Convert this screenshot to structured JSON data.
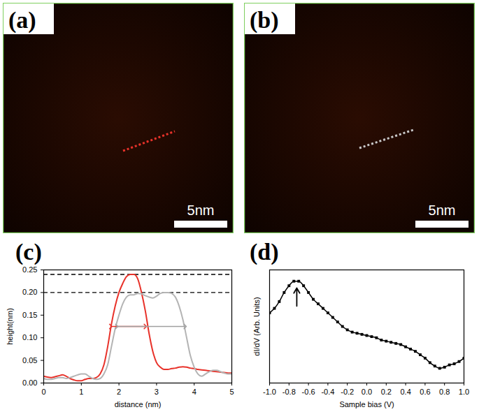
{
  "chart_data": [
    {
      "type": "image",
      "title": "(a)",
      "annotations": [
        "5nm"
      ],
      "color": "#e8322a"
    },
    {
      "type": "image",
      "title": "(b)",
      "annotations": [
        "5nm"
      ],
      "color": "#c8c8c8"
    },
    {
      "type": "line",
      "title": "(c)",
      "xlabel": "distance (nm)",
      "ylabel": "height(nm)",
      "x": [
        0,
        0.1,
        0.2,
        0.3,
        0.4,
        0.5,
        0.6,
        0.7,
        0.8,
        0.9,
        1.0,
        1.1,
        1.2,
        1.3,
        1.4,
        1.5,
        1.6,
        1.7,
        1.8,
        1.9,
        2.0,
        2.1,
        2.2,
        2.3,
        2.4,
        2.5,
        2.6,
        2.7,
        2.8,
        2.9,
        3.0,
        3.1,
        3.2,
        3.3,
        3.4,
        3.5,
        3.6,
        3.7,
        3.8,
        3.9,
        4.0,
        4.1,
        4.2,
        4.3,
        4.4,
        4.5,
        4.6,
        4.7,
        4.8,
        4.9,
        5.0
      ],
      "series": [
        {
          "color": "#e8322a",
          "values": [
            0.015,
            0.013,
            0.012,
            0.014,
            0.016,
            0.018,
            0.015,
            0.01,
            0.007,
            0.005,
            0.005,
            0.008,
            0.01,
            0.01,
            0.012,
            0.02,
            0.04,
            0.08,
            0.13,
            0.17,
            0.2,
            0.22,
            0.235,
            0.24,
            0.24,
            0.23,
            0.2,
            0.16,
            0.11,
            0.07,
            0.045,
            0.035,
            0.03,
            0.03,
            0.032,
            0.033,
            0.035,
            0.036,
            0.035,
            0.033,
            0.032,
            0.03,
            0.029,
            0.028,
            0.027,
            0.026,
            0.025,
            0.024,
            0.023,
            0.022,
            0.022
          ]
        },
        {
          "color": "#b4b4b4",
          "values": [
            0.01,
            0.008,
            0.008,
            0.01,
            0.012,
            0.012,
            0.01,
            0.012,
            0.015,
            0.018,
            0.02,
            0.02,
            0.015,
            0.01,
            0.008,
            0.01,
            0.02,
            0.04,
            0.08,
            0.12,
            0.15,
            0.175,
            0.19,
            0.195,
            0.195,
            0.198,
            0.197,
            0.193,
            0.19,
            0.188,
            0.192,
            0.198,
            0.2,
            0.2,
            0.198,
            0.19,
            0.17,
            0.14,
            0.1,
            0.06,
            0.035,
            0.02,
            0.015,
            0.02,
            0.025,
            0.028,
            0.028,
            0.025,
            0.022,
            0.02,
            0.02
          ]
        }
      ],
      "xlim": [
        0,
        5
      ],
      "xticks": [
        0,
        1,
        2,
        3,
        4,
        5
      ],
      "ylim": [
        0,
        0.25
      ],
      "yticks": [
        {
          "value": 0,
          "label": "0.00"
        },
        {
          "value": 0.05,
          "label": "0.05"
        },
        {
          "value": 0.1,
          "label": "0.10"
        },
        {
          "value": 0.15,
          "label": "0.15"
        },
        {
          "value": 0.2,
          "label": "0.20"
        },
        {
          "value": 0.25,
          "label": "0.25"
        }
      ],
      "hlines": [
        0.24,
        0.2
      ],
      "arrows": [
        {
          "x": [
            1.78,
            2.7
          ],
          "y": [
            0.125,
            0.125
          ],
          "color": "#e8322a"
        },
        {
          "x": [
            1.94,
            3.76
          ],
          "y": [
            0.125,
            0.125
          ],
          "color": "#a0a0a0"
        }
      ]
    },
    {
      "type": "scatter",
      "title": "(d)",
      "marker": "square",
      "color": "#000000",
      "xlabel": "Sample bias (V)",
      "ylabel": "dI/dV (Arb. Units)",
      "x": [
        -1.0,
        -0.95,
        -0.9,
        -0.85,
        -0.8,
        -0.75,
        -0.7,
        -0.65,
        -0.6,
        -0.55,
        -0.5,
        -0.45,
        -0.4,
        -0.35,
        -0.3,
        -0.25,
        -0.2,
        -0.15,
        -0.1,
        -0.05,
        0,
        0.05,
        0.1,
        0.15,
        0.2,
        0.25,
        0.3,
        0.35,
        0.4,
        0.45,
        0.5,
        0.55,
        0.6,
        0.65,
        0.7,
        0.75,
        0.8,
        0.85,
        0.9,
        0.95,
        1.0
      ],
      "values": [
        0.62,
        0.66,
        0.72,
        0.8,
        0.86,
        0.9,
        0.9,
        0.86,
        0.8,
        0.74,
        0.7,
        0.66,
        0.62,
        0.58,
        0.54,
        0.5,
        0.47,
        0.45,
        0.44,
        0.43,
        0.42,
        0.41,
        0.4,
        0.38,
        0.37,
        0.36,
        0.35,
        0.34,
        0.32,
        0.3,
        0.28,
        0.25,
        0.22,
        0.18,
        0.15,
        0.13,
        0.14,
        0.16,
        0.17,
        0.19,
        0.22
      ],
      "xlim": [
        -1,
        1
      ],
      "xticks": [
        {
          "value": -1,
          "label": "-1.0"
        },
        {
          "value": -0.8,
          "label": "-0.8"
        },
        {
          "value": -0.6,
          "label": "-0.6"
        },
        {
          "value": -0.4,
          "label": "-0.4"
        },
        {
          "value": -0.2,
          "label": "-0.2"
        },
        {
          "value": 0,
          "label": "0.0"
        },
        {
          "value": 0.2,
          "label": "0.2"
        },
        {
          "value": 0.4,
          "label": "0.4"
        },
        {
          "value": 0.6,
          "label": "0.6"
        },
        {
          "value": 0.8,
          "label": "0.8"
        },
        {
          "value": 1,
          "label": "1.0"
        }
      ],
      "ylim": [
        0,
        1
      ],
      "yticks": [],
      "tick_labels": "x",
      "arrows": [
        {
          "x": [
            -0.72,
            -0.72
          ],
          "y": [
            0.68,
            0.84
          ],
          "color": "#000000"
        }
      ]
    }
  ]
}
